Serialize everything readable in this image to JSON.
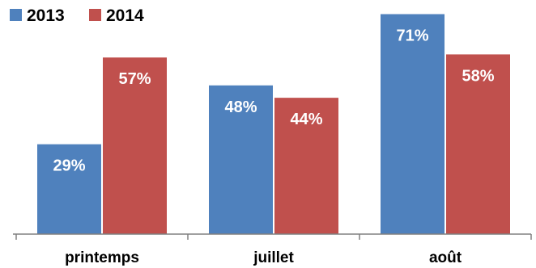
{
  "chart_data": {
    "type": "bar",
    "categories": [
      "printemps",
      "juillet",
      "août"
    ],
    "series": [
      {
        "name": "2013",
        "values": [
          29,
          48,
          71
        ],
        "labels": [
          "29%",
          "48%",
          "71%"
        ],
        "color": "#4F81BD"
      },
      {
        "name": "2014",
        "values": [
          57,
          44,
          58
        ],
        "labels": [
          "57%",
          "44%",
          "58%"
        ],
        "color": "#C0504D"
      }
    ],
    "value_format": "percent",
    "ylim": [
      0,
      74
    ],
    "grid": false,
    "show_y_axis": false,
    "legend": "top-left",
    "title": "",
    "xlabel": "",
    "ylabel": ""
  }
}
